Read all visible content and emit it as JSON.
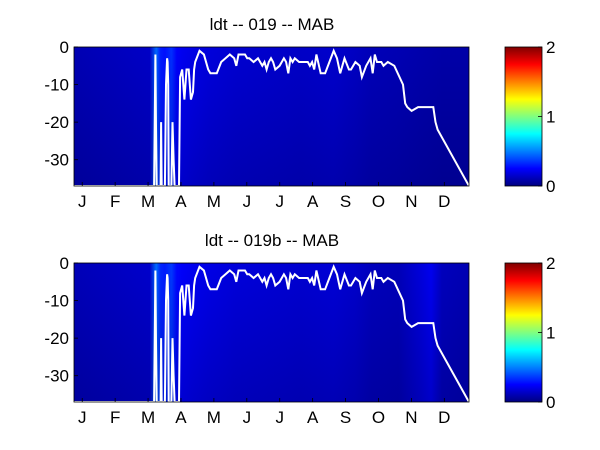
{
  "chart_data": [
    {
      "type": "heatmap",
      "title": "ldt -- 019 -- MAB",
      "xlabel": "",
      "ylabel": "",
      "x_ticks": [
        "J",
        "F",
        "M",
        "A",
        "M",
        "J",
        "J",
        "A",
        "S",
        "O",
        "N",
        "D"
      ],
      "y_ticks": [
        0,
        -10,
        -20,
        -30
      ],
      "xlim": [
        0,
        365
      ],
      "ylim": [
        -37,
        0
      ],
      "colorbar": {
        "range": [
          0,
          2
        ],
        "ticks": [
          0,
          1,
          2
        ],
        "colormap": "jet"
      },
      "heat_profile": [
        [
          0,
          0.1
        ],
        [
          70,
          0.14
        ],
        [
          76,
          0.45
        ],
        [
          80,
          0.3
        ],
        [
          84,
          0.28
        ],
        [
          90,
          0.34
        ],
        [
          95,
          0.24
        ],
        [
          100,
          0.22
        ],
        [
          110,
          0.2
        ],
        [
          125,
          0.18
        ],
        [
          150,
          0.16
        ],
        [
          180,
          0.15
        ],
        [
          210,
          0.14
        ],
        [
          240,
          0.15
        ],
        [
          260,
          0.13
        ],
        [
          275,
          0.11
        ],
        [
          300,
          0.1
        ],
        [
          320,
          0.09
        ],
        [
          340,
          0.08
        ],
        [
          365,
          0.08
        ]
      ],
      "line": {
        "color": "#ffffff",
        "x": [
          0,
          74,
          74.6,
          75.2,
          75.8,
          76.4,
          79,
          80,
          80.5,
          81,
          82,
          83,
          84,
          85,
          86,
          86.5,
          87,
          87.5,
          88,
          89,
          90,
          91,
          92,
          93,
          94,
          95,
          97,
          98,
          100,
          102,
          104,
          106,
          108,
          110,
          111,
          112,
          116,
          120,
          124,
          126,
          128,
          132,
          136,
          140,
          144,
          148,
          150,
          152,
          156,
          158,
          160,
          162,
          166,
          170,
          174,
          176,
          178,
          180,
          182,
          184,
          186,
          190,
          194,
          196,
          198,
          200,
          202,
          204,
          208,
          212,
          216,
          218,
          220,
          222,
          224,
          228,
          232,
          236,
          240,
          243,
          246,
          250,
          254,
          256,
          260,
          264,
          266,
          270,
          274,
          276,
          278,
          280,
          282,
          284,
          286,
          290,
          296,
          304,
          306,
          308,
          312,
          318,
          326,
          332,
          334,
          336,
          365
        ],
        "y": [
          -37,
          -37,
          -21,
          -2,
          -21,
          -37,
          -37,
          -37,
          -20,
          -37,
          -37,
          -37,
          -37,
          -10,
          -3,
          -4,
          -10,
          -37,
          -37,
          -37,
          -37,
          -20,
          -30,
          -37,
          -37,
          -37,
          -37,
          -8,
          -6,
          -14,
          -6,
          -6,
          -14,
          -12,
          -6,
          -4,
          -1,
          -2,
          -6,
          -7,
          -7,
          -7,
          -4,
          -3,
          -2,
          -3,
          -5,
          -2,
          -2,
          -2,
          -3,
          -3,
          -4,
          -3,
          -5,
          -4,
          -6,
          -4,
          -3,
          -4,
          -6,
          -5,
          -3,
          -4,
          -7,
          -3,
          -4,
          -3,
          -4,
          -4,
          -4,
          -5,
          -4,
          -6,
          -2,
          -7,
          -7,
          -4,
          -1,
          -3,
          -7,
          -3,
          -6,
          -6,
          -4,
          -5,
          -8,
          -5,
          -3,
          -7,
          -2,
          -4,
          -4,
          -4,
          -5,
          -4,
          -5,
          -10,
          -15,
          -16,
          -17,
          -16,
          -16,
          -16,
          -20,
          -22,
          -37,
          -37
        ]
      }
    },
    {
      "type": "heatmap",
      "title": "ldt -- 019b -- MAB",
      "xlabel": "",
      "ylabel": "",
      "x_ticks": [
        "J",
        "F",
        "M",
        "A",
        "M",
        "J",
        "J",
        "A",
        "S",
        "O",
        "N",
        "D"
      ],
      "y_ticks": [
        0,
        -10,
        -20,
        -30
      ],
      "xlim": [
        0,
        365
      ],
      "ylim": [
        -37,
        0
      ],
      "colorbar": {
        "range": [
          0,
          2
        ],
        "ticks": [
          0,
          1,
          2
        ],
        "colormap": "jet"
      },
      "heat_profile": [
        [
          0,
          0.11
        ],
        [
          70,
          0.15
        ],
        [
          76,
          0.46
        ],
        [
          80,
          0.32
        ],
        [
          84,
          0.3
        ],
        [
          90,
          0.36
        ],
        [
          95,
          0.26
        ],
        [
          100,
          0.24
        ],
        [
          110,
          0.22
        ],
        [
          125,
          0.2
        ],
        [
          150,
          0.18
        ],
        [
          180,
          0.17
        ],
        [
          210,
          0.16
        ],
        [
          240,
          0.17
        ],
        [
          260,
          0.15
        ],
        [
          275,
          0.12
        ],
        [
          300,
          0.11
        ],
        [
          320,
          0.18
        ],
        [
          330,
          0.22
        ],
        [
          340,
          0.12
        ],
        [
          365,
          0.1
        ]
      ],
      "line": {
        "color": "#ffffff",
        "x": [
          0,
          74,
          74.6,
          75.2,
          75.8,
          76.4,
          79,
          80,
          80.5,
          81,
          82,
          83,
          84,
          85,
          86,
          86.5,
          87,
          87.5,
          88,
          89,
          90,
          91,
          92,
          93,
          94,
          95,
          97,
          98,
          100,
          102,
          104,
          106,
          108,
          110,
          111,
          112,
          116,
          120,
          124,
          126,
          128,
          132,
          136,
          140,
          144,
          148,
          150,
          152,
          156,
          158,
          160,
          162,
          166,
          170,
          174,
          176,
          178,
          180,
          182,
          184,
          186,
          190,
          194,
          196,
          198,
          200,
          202,
          204,
          208,
          212,
          216,
          218,
          220,
          222,
          224,
          228,
          232,
          236,
          240,
          243,
          246,
          250,
          254,
          256,
          260,
          264,
          266,
          270,
          274,
          276,
          278,
          280,
          282,
          284,
          286,
          290,
          296,
          304,
          306,
          308,
          312,
          318,
          326,
          332,
          334,
          336,
          365
        ],
        "y": [
          -37,
          -37,
          -21,
          -2,
          -21,
          -37,
          -37,
          -37,
          -20,
          -37,
          -37,
          -37,
          -37,
          -10,
          -3,
          -4,
          -10,
          -37,
          -37,
          -37,
          -37,
          -20,
          -30,
          -37,
          -37,
          -37,
          -37,
          -8,
          -6,
          -14,
          -6,
          -6,
          -14,
          -12,
          -6,
          -4,
          -1,
          -2,
          -6,
          -7,
          -7,
          -7,
          -4,
          -3,
          -2,
          -3,
          -5,
          -2,
          -2,
          -2,
          -3,
          -3,
          -4,
          -3,
          -5,
          -4,
          -6,
          -4,
          -3,
          -4,
          -6,
          -5,
          -3,
          -4,
          -7,
          -3,
          -4,
          -3,
          -4,
          -4,
          -4,
          -5,
          -4,
          -6,
          -2,
          -7,
          -7,
          -4,
          -1,
          -3,
          -7,
          -3,
          -6,
          -6,
          -4,
          -5,
          -8,
          -5,
          -3,
          -7,
          -2,
          -4,
          -4,
          -4,
          -5,
          -4,
          -5,
          -10,
          -15,
          -16,
          -17,
          -16,
          -16,
          -16,
          -20,
          -22,
          -37,
          -37
        ]
      }
    }
  ]
}
